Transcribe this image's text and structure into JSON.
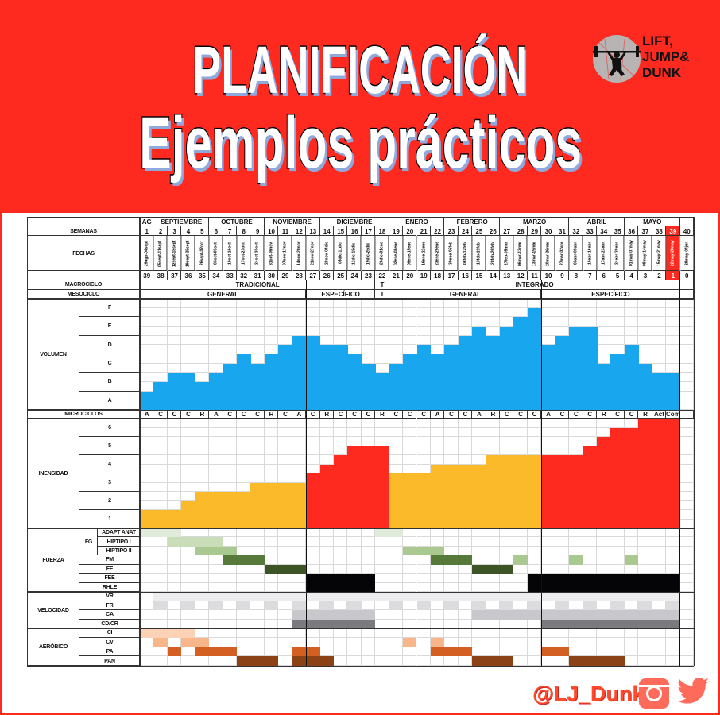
{
  "header": {
    "title": "PLANIFICACIÓN",
    "subtitle": "Ejemplos prácticos"
  },
  "logo": {
    "line1": "LIFT,",
    "line2": "JUMP&",
    "line3": "DUNK"
  },
  "footer": {
    "handle": "@LJ_Dunk",
    "icons": [
      "instagram-icon",
      "twitter-icon"
    ]
  },
  "colors": {
    "brand_red": "#ff2a1f",
    "volume": "#18a6ef",
    "general": "#fbba2a",
    "especifico": "#ff2a1f"
  },
  "table": {
    "labels": {
      "semanas": "SEMANAS",
      "fechas": "FECHAS",
      "macrociclo": "MACROCICLO",
      "mesociclo": "MESOCICLO",
      "volumen": "VOLUMEN",
      "microciclos": "MICROCICLOS",
      "intensidad": "INENSIDAD",
      "fuerza": "FUERZA",
      "fg": "FG",
      "velocidad": "VELOCIDAD",
      "aerobico": "AERÓBICO"
    },
    "months": [
      {
        "label": "AG",
        "from": 1,
        "to": 1
      },
      {
        "label": "SEPTIEMBRE",
        "from": 2,
        "to": 5
      },
      {
        "label": "OCTUBRE",
        "from": 6,
        "to": 9
      },
      {
        "label": "NOVIEMBRE",
        "from": 10,
        "to": 13
      },
      {
        "label": "DICIEMBRE",
        "from": 14,
        "to": 18
      },
      {
        "label": "ENERO",
        "from": 19,
        "to": 22
      },
      {
        "label": "FEBRERO",
        "from": 23,
        "to": 26
      },
      {
        "label": "MARZO",
        "from": 27,
        "to": 31
      },
      {
        "label": "ABRIL",
        "from": 32,
        "to": 35
      },
      {
        "label": "MAYO",
        "from": 36,
        "to": 39
      }
    ],
    "weeks": [
      "1",
      "2",
      "3",
      "4",
      "5",
      "6",
      "7",
      "8",
      "9",
      "10",
      "11",
      "12",
      "13",
      "14",
      "15",
      "16",
      "17",
      "18",
      "19",
      "20",
      "21",
      "22",
      "23",
      "24",
      "25",
      "26",
      "27",
      "28",
      "29",
      "30",
      "31",
      "32",
      "33",
      "34",
      "35",
      "36",
      "37",
      "38",
      "39",
      "40"
    ],
    "dates": [
      "29ago-04sept",
      "05sept-11sept",
      "12sept-18sept",
      "19sept-25sept",
      "26sept-02oct",
      "03oct-09oct",
      "10oct-16oct",
      "17oct-23oct",
      "24oct-30oct",
      "31oct-06nov",
      "07nov-13nov",
      "14nov-20nov",
      "21nov-27nov",
      "28nov-04dic",
      "05dic-11dic",
      "12dic-18dic",
      "19dic-25dic",
      "26dic-01ene",
      "02ene-08ene",
      "09ene-15ene",
      "16ene-22ene",
      "23ene-29ene",
      "30ene-05feb",
      "06feb-12feb",
      "13feb-19feb",
      "20feb-26feb",
      "27feb-05mar",
      "06mar-12mar",
      "13mar-19mar",
      "20mar-26mar",
      "27mar-02abr",
      "03abr-09abr",
      "10abr-16abr",
      "17abr-23abr",
      "24abr-30abr",
      "01may-07may",
      "08may-14may",
      "15may-21may",
      "22may-28may",
      "29may-04jun"
    ],
    "countdown": [
      "39",
      "38",
      "37",
      "36",
      "35",
      "34",
      "33",
      "32",
      "31",
      "30",
      "29",
      "28",
      "27",
      "26",
      "25",
      "24",
      "23",
      "22",
      "21",
      "20",
      "19",
      "18",
      "17",
      "16",
      "15",
      "14",
      "13",
      "12",
      "11",
      "10",
      "9",
      "8",
      "7",
      "6",
      "5",
      "4",
      "3",
      "2",
      "1",
      "0",
      ""
    ],
    "current_week": 39,
    "macrocycles": [
      {
        "label": "TRADICIONAL",
        "from": 1,
        "to": 17
      },
      {
        "label": "T",
        "from": 18,
        "to": 18
      },
      {
        "label": "INTEGRADO",
        "from": 19,
        "to": 39
      }
    ],
    "mesocycles": [
      {
        "label": "GENERAL",
        "from": 1,
        "to": 12
      },
      {
        "label": "ESPECÍFICO",
        "from": 13,
        "to": 17
      },
      {
        "label": "T",
        "from": 18,
        "to": 18
      },
      {
        "label": "GENERAL",
        "from": 19,
        "to": 29
      },
      {
        "label": "ESPECÍFICO",
        "from": 30,
        "to": 39
      }
    ],
    "volume": {
      "levels": [
        "A",
        "B",
        "C",
        "D",
        "E",
        "F"
      ],
      "values": [
        1,
        1.5,
        2,
        2,
        1.5,
        2,
        2.5,
        3,
        2.5,
        3,
        3.5,
        4,
        4,
        3.5,
        3.5,
        3,
        2.5,
        2,
        2.5,
        3,
        3.5,
        3,
        3.5,
        4,
        4.5,
        4,
        4.5,
        5,
        5.5,
        3.5,
        4,
        4.5,
        4.5,
        2.5,
        3,
        3.5,
        2.5,
        2,
        2
      ]
    },
    "microcycles": [
      "A",
      "C",
      "C",
      "C",
      "R",
      "A",
      "C",
      "C",
      "C",
      "R",
      "C",
      "A",
      "C",
      "R",
      "C",
      "C",
      "C",
      "R",
      "C",
      "C",
      "C",
      "A",
      "C",
      "C",
      "A",
      "R",
      "C",
      "C",
      "C",
      "A",
      "C",
      "C",
      "C",
      "R",
      "C",
      "C",
      "R",
      "Act",
      "Com"
    ],
    "intensity": {
      "levels": [
        "1",
        "2",
        "3",
        "4",
        "5",
        "6"
      ],
      "values": [
        1,
        1,
        1,
        1.5,
        2,
        2,
        2,
        2,
        2.5,
        2.5,
        2.5,
        2.5,
        3,
        3.5,
        4,
        4.5,
        4.5,
        4.5,
        3,
        3,
        3,
        3.5,
        3.5,
        3.5,
        3.5,
        4,
        4,
        4,
        4,
        4,
        4,
        4,
        4.5,
        5,
        5.5,
        5.5,
        6,
        6,
        6
      ],
      "phases": [
        {
          "from": 1,
          "to": 12,
          "color": "#fbba2a"
        },
        {
          "from": 13,
          "to": 18,
          "color": "#ff2a1f"
        },
        {
          "from": 19,
          "to": 29,
          "color": "#fbba2a"
        },
        {
          "from": 30,
          "to": 39,
          "color": "#ff2a1f"
        }
      ]
    },
    "fuerza": [
      {
        "label": "ADAPT ANAT",
        "blocks": [
          {
            "from": 1,
            "to": 3,
            "color": "#e1ebda"
          },
          {
            "from": 18,
            "to": 19,
            "color": "#e1ebda"
          }
        ]
      },
      {
        "label": "HIPTIPO I",
        "blocks": [
          {
            "from": 3,
            "to": 6,
            "color": "#c9ddb9"
          }
        ]
      },
      {
        "label": "HIPTIPO II",
        "blocks": [
          {
            "from": 5,
            "to": 7,
            "color": "#a9c990"
          },
          {
            "from": 20,
            "to": 22,
            "color": "#a9c990"
          }
        ]
      },
      {
        "label": "FM",
        "blocks": [
          {
            "from": 7,
            "to": 9,
            "color": "#557a3a"
          },
          {
            "from": 22,
            "to": 24,
            "color": "#557a3a"
          },
          {
            "from": 28,
            "to": 28,
            "color": "#a9c990"
          },
          {
            "from": 32,
            "to": 32,
            "color": "#a9c990"
          },
          {
            "from": 36,
            "to": 36,
            "color": "#a9c990"
          }
        ]
      },
      {
        "label": "FE",
        "blocks": [
          {
            "from": 10,
            "to": 12,
            "color": "#3c5428"
          },
          {
            "from": 25,
            "to": 27,
            "color": "#3c5428"
          }
        ]
      },
      {
        "label": "FEE",
        "blocks": [
          {
            "from": 13,
            "to": 17,
            "color": "#050507"
          },
          {
            "from": 29,
            "to": 39,
            "color": "#050507"
          }
        ]
      },
      {
        "label": "RHLE",
        "blocks": [
          {
            "from": 13,
            "to": 17,
            "color": "#050507"
          },
          {
            "from": 29,
            "to": 39,
            "color": "#050507"
          }
        ]
      }
    ],
    "velocidad": [
      {
        "label": "VR",
        "blocks": [
          {
            "from": 2,
            "to": 39,
            "color": "#ededf0"
          }
        ]
      },
      {
        "label": "FR",
        "blocks": [
          {
            "from": 2,
            "to": 2,
            "color": "#dcdcdf"
          },
          {
            "from": 4,
            "to": 4,
            "color": "#dcdcdf"
          },
          {
            "from": 6,
            "to": 6,
            "color": "#dcdcdf"
          },
          {
            "from": 8,
            "to": 8,
            "color": "#dcdcdf"
          },
          {
            "from": 10,
            "to": 10,
            "color": "#dcdcdf"
          },
          {
            "from": 12,
            "to": 12,
            "color": "#dcdcdf"
          },
          {
            "from": 14,
            "to": 14,
            "color": "#dcdcdf"
          },
          {
            "from": 16,
            "to": 16,
            "color": "#dcdcdf"
          },
          {
            "from": 19,
            "to": 19,
            "color": "#dcdcdf"
          },
          {
            "from": 21,
            "to": 21,
            "color": "#dcdcdf"
          },
          {
            "from": 23,
            "to": 23,
            "color": "#dcdcdf"
          },
          {
            "from": 25,
            "to": 25,
            "color": "#dcdcdf"
          },
          {
            "from": 27,
            "to": 27,
            "color": "#dcdcdf"
          },
          {
            "from": 29,
            "to": 29,
            "color": "#dcdcdf"
          },
          {
            "from": 31,
            "to": 31,
            "color": "#dcdcdf"
          },
          {
            "from": 33,
            "to": 33,
            "color": "#dcdcdf"
          },
          {
            "from": 35,
            "to": 35,
            "color": "#dcdcdf"
          },
          {
            "from": 37,
            "to": 37,
            "color": "#dcdcdf"
          },
          {
            "from": 39,
            "to": 39,
            "color": "#dcdcdf"
          }
        ]
      },
      {
        "label": "CA",
        "blocks": [
          {
            "from": 12,
            "to": 17,
            "color": "#c8c7cb"
          },
          {
            "from": 25,
            "to": 39,
            "color": "#c8c7cb"
          }
        ]
      },
      {
        "label": "CD/CR",
        "blocks": [
          {
            "from": 12,
            "to": 17,
            "color": "#7b7a7e"
          },
          {
            "from": 30,
            "to": 39,
            "color": "#7b7a7e"
          }
        ]
      }
    ],
    "aerobico": [
      {
        "label": "CI",
        "blocks": [
          {
            "from": 1,
            "to": 4,
            "color": "#fcd2b6"
          }
        ]
      },
      {
        "label": "CV",
        "blocks": [
          {
            "from": 2,
            "to": 2,
            "color": "#f7b78a"
          },
          {
            "from": 4,
            "to": 5,
            "color": "#f7b78a"
          },
          {
            "from": 20,
            "to": 20,
            "color": "#f7b78a"
          },
          {
            "from": 22,
            "to": 22,
            "color": "#f7b78a"
          }
        ]
      },
      {
        "label": "PA",
        "blocks": [
          {
            "from": 3,
            "to": 3,
            "color": "#d35f22"
          },
          {
            "from": 5,
            "to": 7,
            "color": "#d35f22"
          },
          {
            "from": 12,
            "to": 13,
            "color": "#d35f22"
          },
          {
            "from": 22,
            "to": 24,
            "color": "#d35f22"
          },
          {
            "from": 30,
            "to": 31,
            "color": "#d35f22"
          }
        ]
      },
      {
        "label": "PAN",
        "blocks": [
          {
            "from": 8,
            "to": 10,
            "color": "#8a4216"
          },
          {
            "from": 12,
            "to": 14,
            "color": "#8a4216"
          },
          {
            "from": 25,
            "to": 27,
            "color": "#8a4216"
          },
          {
            "from": 32,
            "to": 35,
            "color": "#8a4216"
          }
        ]
      }
    ]
  }
}
